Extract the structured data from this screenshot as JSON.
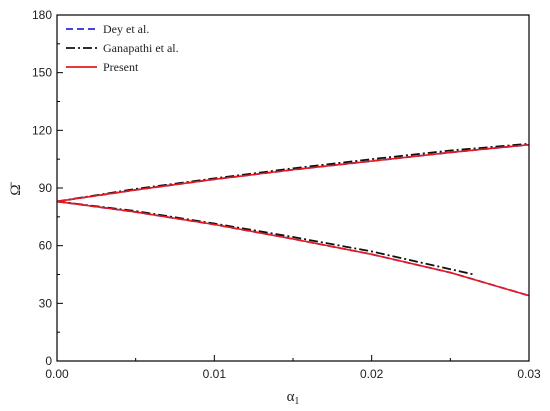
{
  "chart_data": {
    "type": "line",
    "title": "",
    "xlabel": "α",
    "xlabel_sub": "1",
    "ylabel": "Ω̄",
    "xlim": [
      0.0,
      0.03
    ],
    "ylim": [
      0,
      180
    ],
    "xticks": [
      0.0,
      0.01,
      0.02,
      0.03
    ],
    "xtick_labels": [
      "0.00",
      "0.01",
      "0.02",
      "0.03"
    ],
    "yticks": [
      0,
      30,
      60,
      90,
      120,
      150,
      180
    ],
    "ytick_labels": [
      "0",
      "30",
      "60",
      "90",
      "120",
      "150",
      "180"
    ],
    "grid": false,
    "legend_position": "top-left",
    "series": [
      {
        "name": "Dey et al.",
        "color": "#2b2bd6",
        "style": "dashed",
        "branches": [
          {
            "x": [
              0.0,
              0.005,
              0.01,
              0.015,
              0.02,
              0.025,
              0.03
            ],
            "y": [
              83,
              89,
              94.5,
              99.5,
              104,
              108.5,
              112.5
            ]
          },
          {
            "x": [
              0.0,
              0.005,
              0.01,
              0.015,
              0.02,
              0.025,
              0.03
            ],
            "y": [
              83,
              77.5,
              71,
              63.5,
              55.5,
              46,
              34
            ]
          }
        ]
      },
      {
        "name": "Ganapathi et al.",
        "color": "#111111",
        "style": "dashdot",
        "branches": [
          {
            "x": [
              0.0,
              0.005,
              0.01,
              0.015,
              0.02,
              0.025,
              0.03
            ],
            "y": [
              83,
              89.5,
              95,
              100.2,
              105,
              109.5,
              113
            ]
          },
          {
            "x": [
              0.0,
              0.005,
              0.01,
              0.015,
              0.02,
              0.0265
            ],
            "y": [
              83,
              78,
              71.5,
              64.5,
              57,
              45
            ]
          }
        ]
      },
      {
        "name": "Present",
        "color": "#e8191e",
        "style": "solid",
        "branches": [
          {
            "x": [
              0.0,
              0.005,
              0.01,
              0.015,
              0.02,
              0.025,
              0.03
            ],
            "y": [
              83,
              89,
              94.5,
              99.5,
              104,
              108.5,
              112.5
            ]
          },
          {
            "x": [
              0.0,
              0.005,
              0.01,
              0.015,
              0.02,
              0.025,
              0.03
            ],
            "y": [
              83,
              77.5,
              71,
              63.5,
              55.5,
              46,
              34
            ]
          }
        ]
      }
    ]
  }
}
